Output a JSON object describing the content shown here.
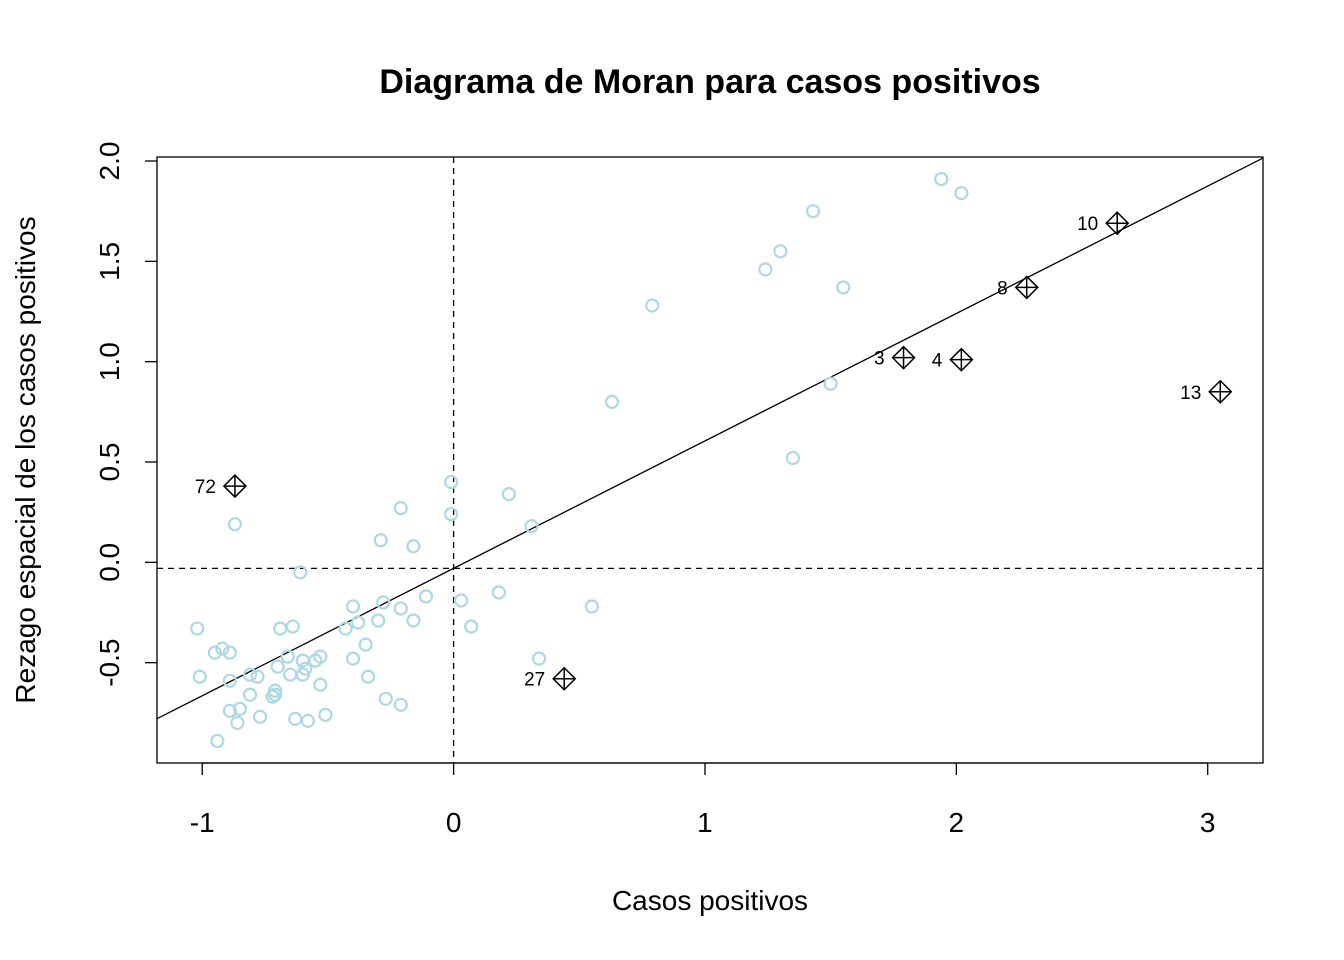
{
  "chart_data": {
    "type": "scatter",
    "title": "Diagrama de Moran para casos positivos",
    "xlabel": "Casos positivos",
    "ylabel": "Rezago espacial de los casos positivos",
    "xlim": [
      -1.18,
      3.22
    ],
    "ylim": [
      -1.0,
      2.02
    ],
    "xticks": [
      -1,
      0,
      1,
      2,
      3
    ],
    "xtick_labels": [
      "-1",
      "0",
      "1",
      "2",
      "3"
    ],
    "yticks": [
      -0.5,
      0.0,
      0.5,
      1.0,
      1.5,
      2.0
    ],
    "ytick_labels": [
      "-0.5",
      "0.0",
      "0.5",
      "1.0",
      "1.5",
      "2.0"
    ],
    "grid": false,
    "regression_line": {
      "intercept": -0.03,
      "slope": 0.635
    },
    "reference_lines": {
      "vertical_x": 0,
      "horizontal_y": -0.03
    },
    "point_color": "#add8e6",
    "influential_color": "#000000",
    "points": [
      {
        "x": -1.02,
        "y": -0.33
      },
      {
        "x": -1.01,
        "y": -0.57
      },
      {
        "x": -0.95,
        "y": -0.45
      },
      {
        "x": -0.94,
        "y": -0.89
      },
      {
        "x": -0.92,
        "y": -0.43
      },
      {
        "x": -0.89,
        "y": -0.45
      },
      {
        "x": -0.89,
        "y": -0.59
      },
      {
        "x": -0.89,
        "y": -0.74
      },
      {
        "x": -0.87,
        "y": 0.19
      },
      {
        "x": -0.86,
        "y": -0.8
      },
      {
        "x": -0.85,
        "y": -0.73
      },
      {
        "x": -0.81,
        "y": -0.66
      },
      {
        "x": -0.81,
        "y": -0.56
      },
      {
        "x": -0.78,
        "y": -0.57
      },
      {
        "x": -0.77,
        "y": -0.77
      },
      {
        "x": -0.72,
        "y": -0.67
      },
      {
        "x": -0.71,
        "y": -0.64
      },
      {
        "x": -0.71,
        "y": -0.66
      },
      {
        "x": -0.7,
        "y": -0.52
      },
      {
        "x": -0.69,
        "y": -0.33
      },
      {
        "x": -0.66,
        "y": -0.47
      },
      {
        "x": -0.65,
        "y": -0.56
      },
      {
        "x": -0.64,
        "y": -0.32
      },
      {
        "x": -0.63,
        "y": -0.78
      },
      {
        "x": -0.61,
        "y": -0.05
      },
      {
        "x": -0.6,
        "y": -0.49
      },
      {
        "x": -0.6,
        "y": -0.56
      },
      {
        "x": -0.59,
        "y": -0.53
      },
      {
        "x": -0.58,
        "y": -0.79
      },
      {
        "x": -0.55,
        "y": -0.49
      },
      {
        "x": -0.53,
        "y": -0.47
      },
      {
        "x": -0.53,
        "y": -0.61
      },
      {
        "x": -0.51,
        "y": -0.76
      },
      {
        "x": -0.43,
        "y": -0.33
      },
      {
        "x": -0.4,
        "y": -0.22
      },
      {
        "x": -0.4,
        "y": -0.48
      },
      {
        "x": -0.38,
        "y": -0.3
      },
      {
        "x": -0.35,
        "y": -0.41
      },
      {
        "x": -0.34,
        "y": -0.57
      },
      {
        "x": -0.3,
        "y": -0.29
      },
      {
        "x": -0.29,
        "y": 0.11
      },
      {
        "x": -0.28,
        "y": -0.2
      },
      {
        "x": -0.27,
        "y": -0.68
      },
      {
        "x": -0.21,
        "y": 0.27
      },
      {
        "x": -0.21,
        "y": -0.23
      },
      {
        "x": -0.21,
        "y": -0.71
      },
      {
        "x": -0.16,
        "y": 0.08
      },
      {
        "x": -0.16,
        "y": -0.29
      },
      {
        "x": -0.11,
        "y": -0.17
      },
      {
        "x": -0.01,
        "y": 0.4
      },
      {
        "x": -0.01,
        "y": 0.24
      },
      {
        "x": 0.03,
        "y": -0.19
      },
      {
        "x": 0.07,
        "y": -0.32
      },
      {
        "x": 0.18,
        "y": -0.15
      },
      {
        "x": 0.22,
        "y": 0.34
      },
      {
        "x": 0.31,
        "y": 0.18
      },
      {
        "x": 0.34,
        "y": -0.48
      },
      {
        "x": 0.55,
        "y": -0.22
      },
      {
        "x": 0.63,
        "y": 0.8
      },
      {
        "x": 0.79,
        "y": 1.28
      },
      {
        "x": 1.24,
        "y": 1.46
      },
      {
        "x": 1.3,
        "y": 1.55
      },
      {
        "x": 1.35,
        "y": 0.52
      },
      {
        "x": 1.43,
        "y": 1.75
      },
      {
        "x": 1.5,
        "y": 0.89
      },
      {
        "x": 1.55,
        "y": 1.37
      },
      {
        "x": 1.94,
        "y": 1.91
      },
      {
        "x": 2.02,
        "y": 1.84
      }
    ],
    "influential_points": [
      {
        "label": "72",
        "x": -0.87,
        "y": 0.38
      },
      {
        "label": "27",
        "x": 0.44,
        "y": -0.58
      },
      {
        "label": "3",
        "x": 1.79,
        "y": 1.02
      },
      {
        "label": "4",
        "x": 2.02,
        "y": 1.01
      },
      {
        "label": "8",
        "x": 2.28,
        "y": 1.37
      },
      {
        "label": "10",
        "x": 2.64,
        "y": 1.69
      },
      {
        "label": "13",
        "x": 3.05,
        "y": 0.85
      }
    ]
  }
}
